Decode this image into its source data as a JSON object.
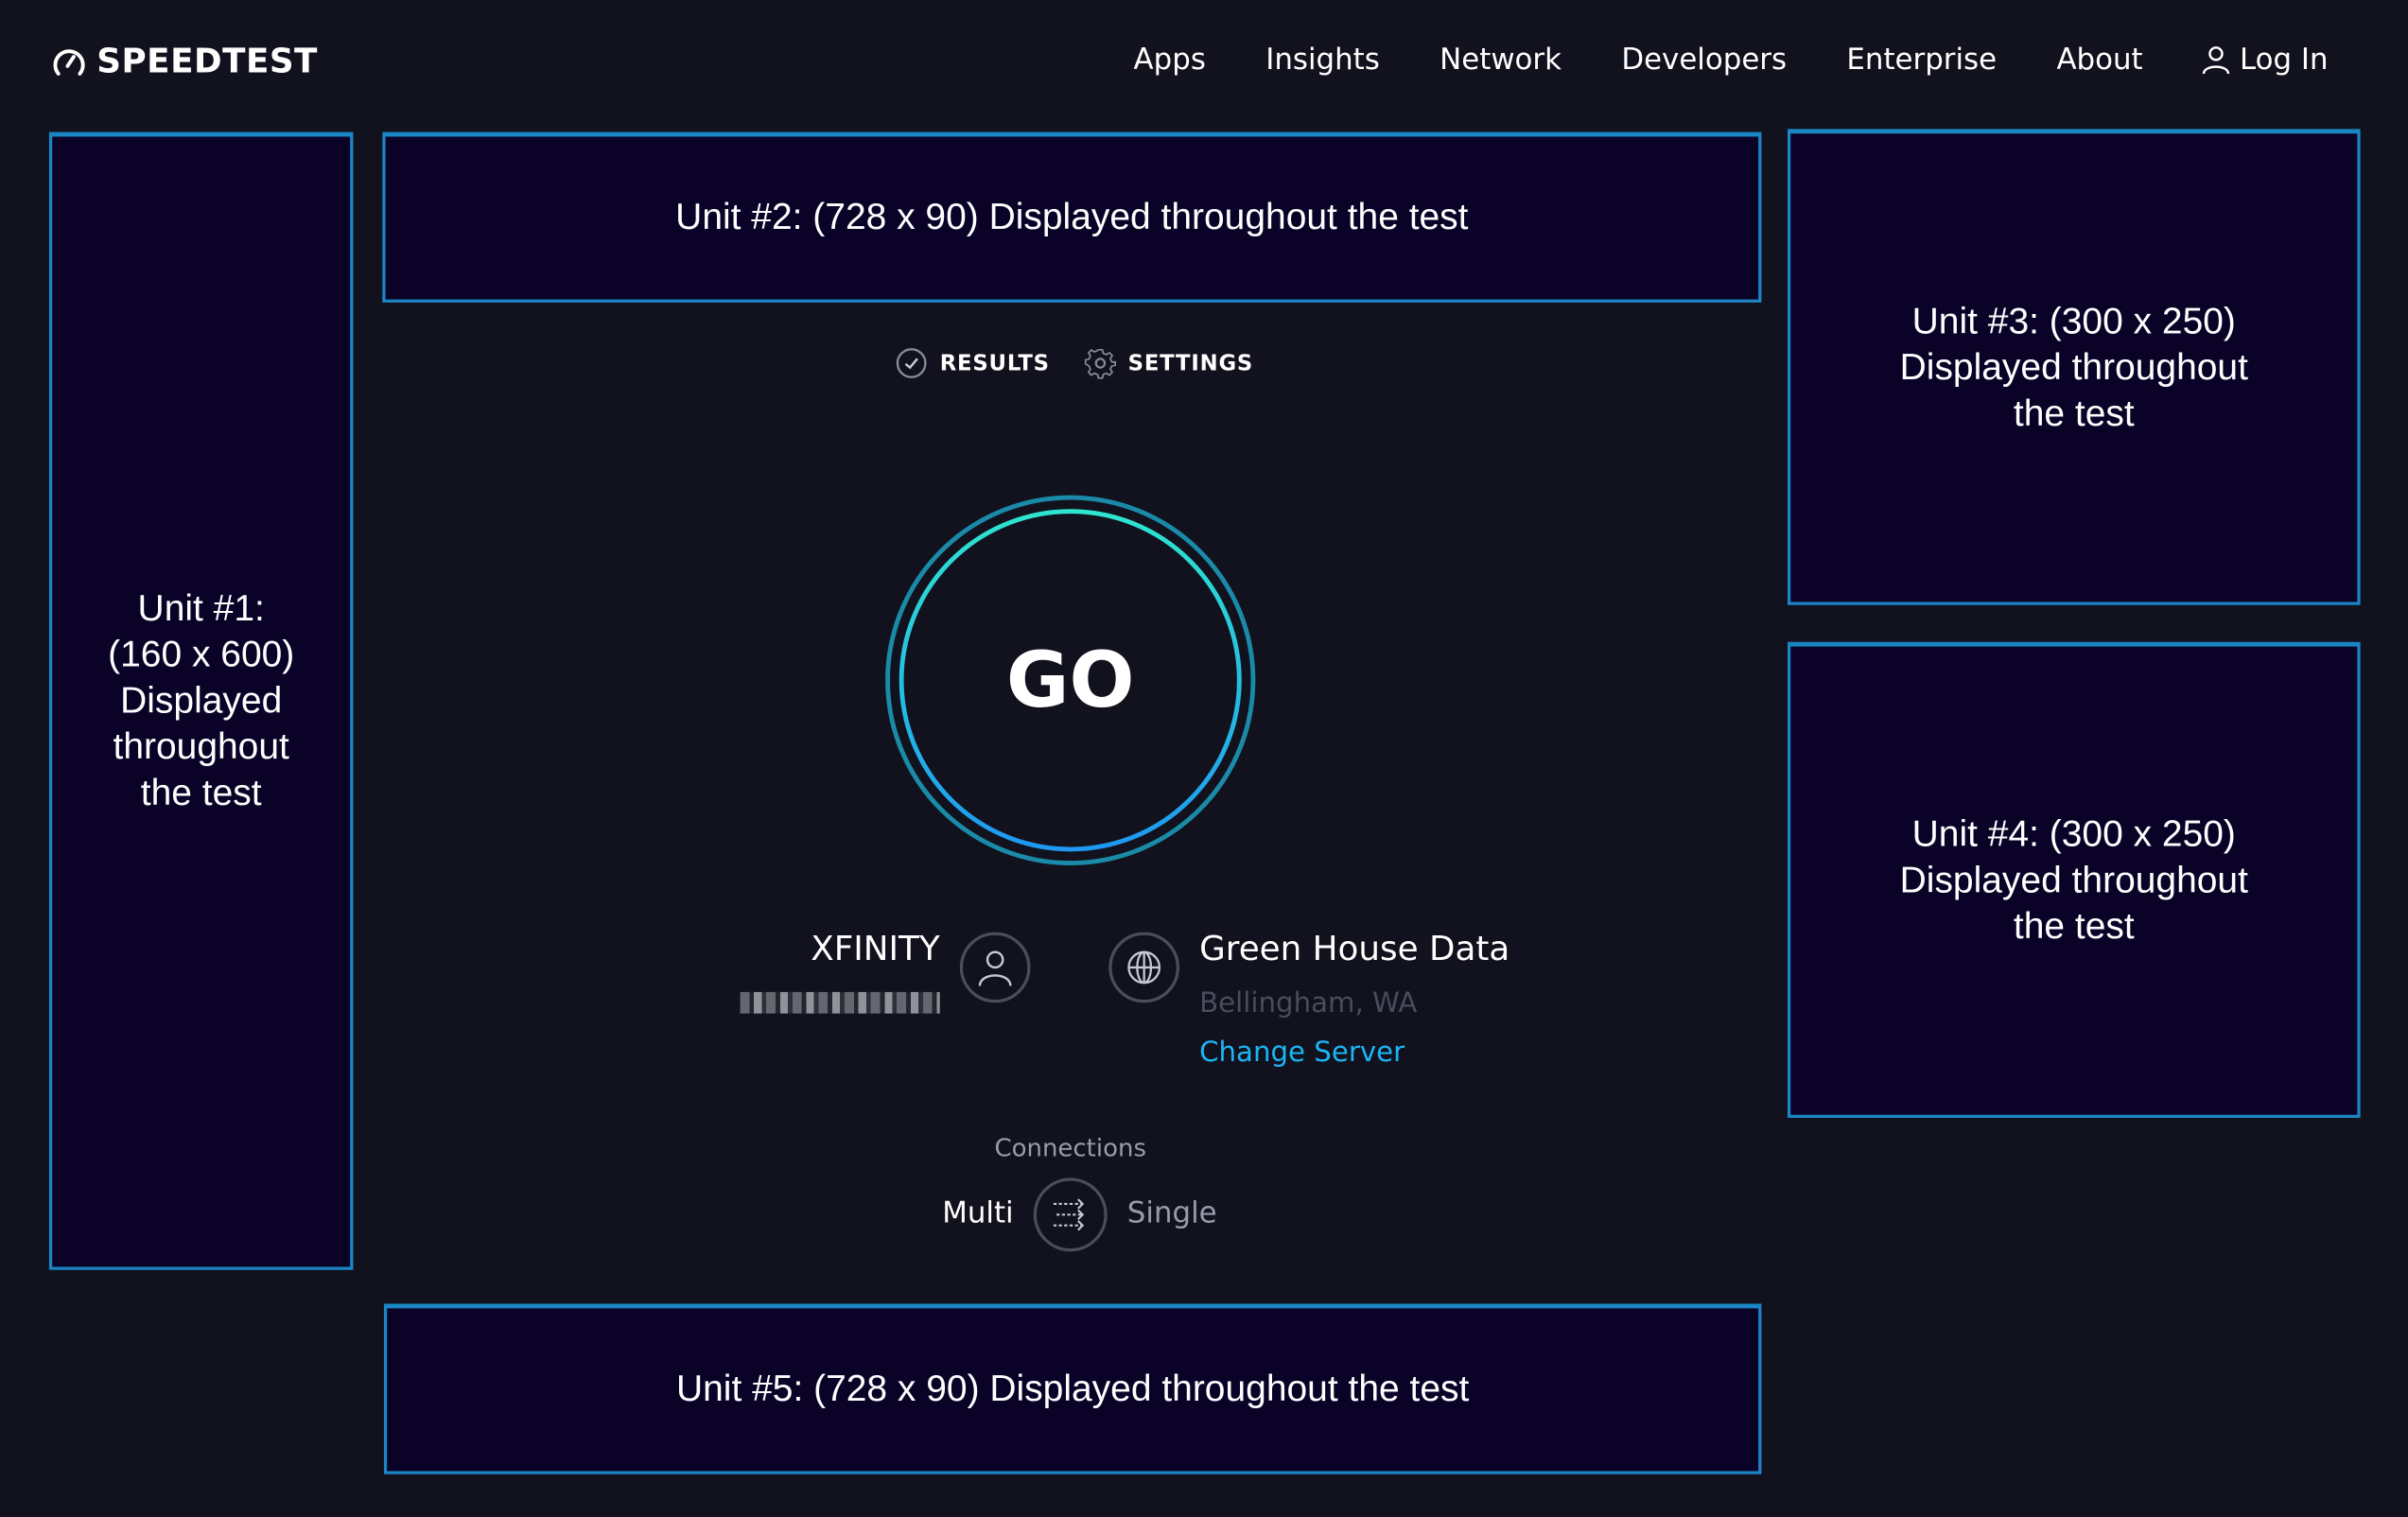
{
  "brand": {
    "name": "SPEEDTEST",
    "logo_icon": "speedometer-icon"
  },
  "nav": {
    "items": [
      "Apps",
      "Insights",
      "Network",
      "Developers",
      "Enterprise",
      "About"
    ],
    "login": "Log In"
  },
  "ads": {
    "unit1": "Unit #1:\n(160 x 600)\nDisplayed\nthroughout\nthe test",
    "unit2": "Unit #2: (728 x 90) Displayed throughout the test",
    "unit3": "Unit #3: (300 x 250)\nDisplayed throughout\nthe test",
    "unit4": "Unit #4: (300 x 250)\nDisplayed throughout\nthe test",
    "unit5": "Unit #5: (728 x 90) Displayed throughout the test"
  },
  "tabs": {
    "results": "RESULTS",
    "settings": "SETTINGS"
  },
  "go": {
    "label": "GO"
  },
  "isp": {
    "name": "XFINITY"
  },
  "server": {
    "name": "Green House Data",
    "location": "Bellingham, WA",
    "change_label": "Change Server"
  },
  "connections": {
    "label": "Connections",
    "multi": "Multi",
    "single": "Single",
    "selected": "Multi"
  },
  "colors": {
    "background": "#11121d",
    "ad_fill": "#0b0228",
    "ad_border": "#1b86c4",
    "accent": "#1cb5f5",
    "ring_inner_top": "#2ee5d0",
    "ring_inner_bottom": "#1e98f0"
  }
}
